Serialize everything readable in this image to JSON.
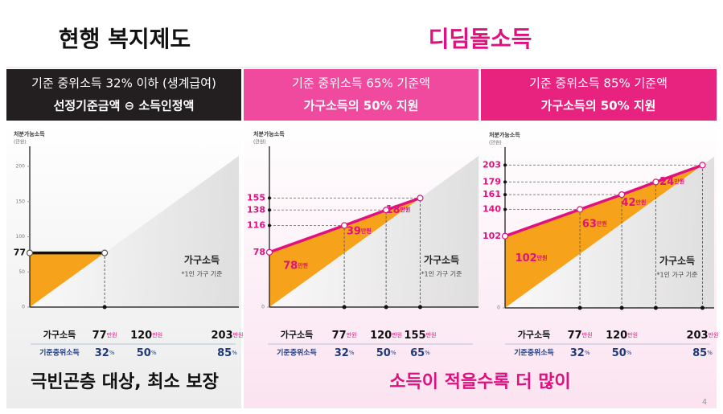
{
  "headers": {
    "left": "현행 복지제도",
    "right": "디딤돌소득"
  },
  "panels": [
    {
      "line1": "기준 중위소득 32% 이하 (생계급여)",
      "line2": "선정기준금액 ⊖ 소득인정액"
    },
    {
      "line1": "기준 중위소득 65% 기준액",
      "line2": "가구소득의 50% 지원"
    },
    {
      "line1": "기준 중위소득 85% 기준액",
      "line2": "가구소득의 50% 지원"
    }
  ],
  "chart_data": [
    {
      "type": "line",
      "y_label": "처분가능소득",
      "y_unit": "(만원)",
      "x_label": "가구소득",
      "note": "*1인 가구 기준",
      "xlim": [
        0,
        215
      ],
      "ylim": [
        0,
        240
      ],
      "yticks": [
        0,
        50,
        100,
        150,
        200
      ],
      "key_yticks": [
        77
      ],
      "key_color": "#111111",
      "xticks": [
        77
      ],
      "x": [
        0,
        77
      ],
      "series": [
        {
          "color": "#111111",
          "values": [
            77,
            77
          ]
        }
      ],
      "area_color": "#f7a21b"
    },
    {
      "type": "line",
      "y_label": "처분가능소득",
      "y_unit": "(만원)",
      "x_label": "가구소득",
      "note": "*1인 가구 기준",
      "xlim": [
        0,
        215
      ],
      "ylim": [
        0,
        240
      ],
      "yticks": [
        0
      ],
      "key_yticks": [
        78,
        116,
        138,
        155
      ],
      "key_color": "#e0117f",
      "xticks": [
        77,
        120,
        155
      ],
      "x": [
        0,
        77,
        120,
        155
      ],
      "series": [
        {
          "color": "#e0117f",
          "values": [
            78,
            116,
            138,
            155
          ]
        }
      ],
      "area_color": "#f7a21b",
      "support": {
        "values": [
          78,
          39,
          18
        ],
        "unit": "만원"
      }
    },
    {
      "type": "line",
      "y_label": "처분가능소득",
      "y_unit": "(만원)",
      "x_label": "가구소득",
      "note": "*1인 가구 기준",
      "xlim": [
        0,
        215
      ],
      "ylim": [
        0,
        240
      ],
      "yticks": [
        0
      ],
      "key_yticks": [
        102,
        140,
        161,
        179,
        203
      ],
      "key_color": "#e0117f",
      "xticks": [
        77,
        120,
        155,
        203
      ],
      "x": [
        0,
        77,
        120,
        155,
        203
      ],
      "series": [
        {
          "color": "#e0117f",
          "values": [
            102,
            140,
            161,
            179,
            203
          ]
        }
      ],
      "area_color": "#f7a21b",
      "support": {
        "values": [
          102,
          63,
          42,
          24
        ],
        "unit": "만원"
      }
    }
  ],
  "tables": [
    {
      "rows": [
        {
          "label": "가구소득",
          "values": [
            77,
            120,
            203
          ],
          "unit": "만원"
        },
        {
          "label": "기준중위소득",
          "values": [
            32,
            50,
            85
          ],
          "unit": "%"
        }
      ]
    },
    {
      "rows": [
        {
          "label": "가구소득",
          "values": [
            77,
            120,
            155
          ],
          "unit": "만원"
        },
        {
          "label": "기준중위소득",
          "values": [
            32,
            50,
            65
          ],
          "unit": "%"
        }
      ]
    },
    {
      "rows": [
        {
          "label": "가구소득",
          "values": [
            77,
            120,
            203
          ],
          "unit": "만원"
        },
        {
          "label": "기준중위소득",
          "values": [
            32,
            50,
            85
          ],
          "unit": "%"
        }
      ]
    }
  ],
  "footers": {
    "left": "극빈곤층 대상, 최소 보장",
    "right": "소득이 적을수록 더 많이"
  },
  "page_number": "4"
}
